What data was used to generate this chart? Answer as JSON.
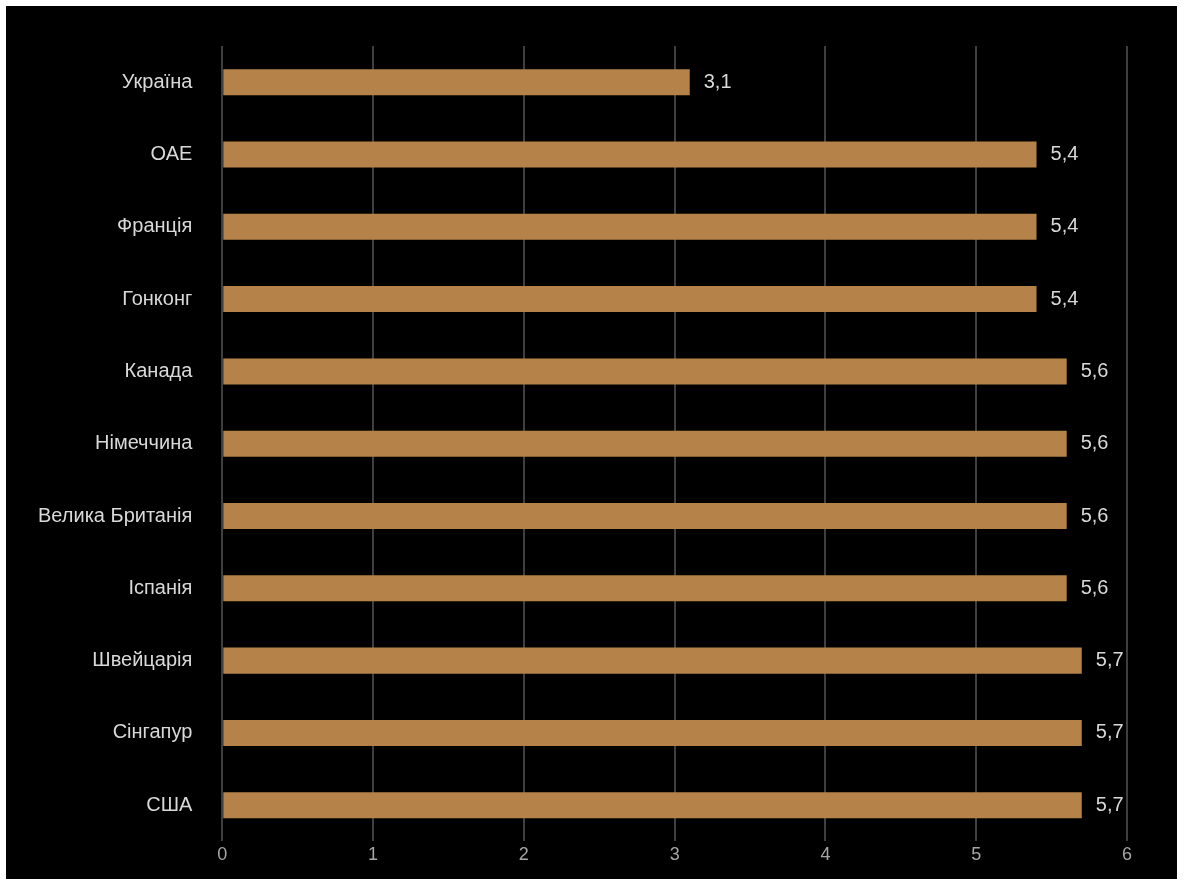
{
  "chart_data": {
    "type": "bar",
    "orientation": "horizontal",
    "categories": [
      "Україна",
      "ОАЕ",
      "Франція",
      "Гонконг",
      "Канада",
      "Німеччина",
      "Велика Британія",
      "Іспанія",
      "Швейцарія",
      "Сінгапур",
      "США"
    ],
    "values": [
      3.1,
      5.4,
      5.4,
      5.4,
      5.6,
      5.6,
      5.6,
      5.6,
      5.7,
      5.7,
      5.7
    ],
    "value_labels": [
      "3,1",
      "5,4",
      "5,4",
      "5,4",
      "5,6",
      "5,6",
      "5,6",
      "5,6",
      "5,7",
      "5,7",
      "5,7"
    ],
    "color": "#b5834a",
    "xlim": [
      0,
      6
    ],
    "xticks": [
      0,
      1,
      2,
      3,
      4,
      5,
      6
    ],
    "grid": "x"
  }
}
